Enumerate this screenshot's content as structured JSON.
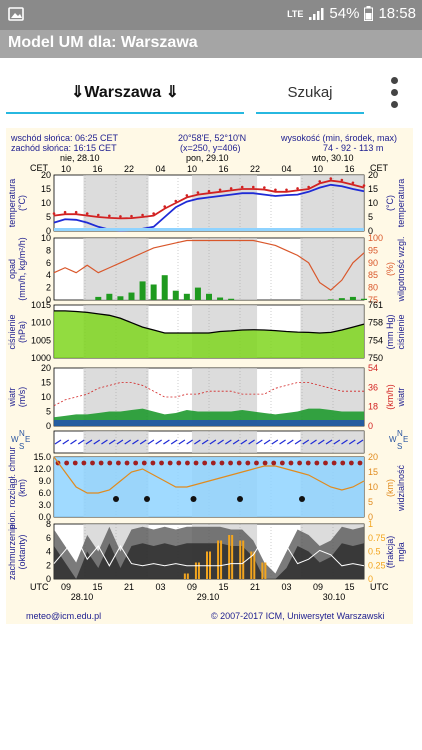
{
  "status": {
    "lte": "LTE",
    "battery": "54%",
    "time": "18:58"
  },
  "app": {
    "title": "Model UM dla: Warszawa"
  },
  "toolbar": {
    "location": "⇓Warszawa ⇓",
    "search": "Szukaj"
  },
  "meteogram": {
    "sunrise": "wschód słońca: 06:25 CET",
    "sunset": "zachód słońca: 16:15 CET",
    "coords": "20°58'E, 52°10'N",
    "grid": "(x=250, y=406)",
    "height_label": "wysokość (min, środek, max)",
    "height_values": "74 - 92 - 113 m",
    "day_labels": [
      "nie, 28.10",
      "pon, 29.10",
      "wto, 30.10"
    ],
    "cet_label": "CET",
    "utc_label": "UTC",
    "top_hours": [
      "10",
      "16",
      "22",
      "04",
      "10",
      "16",
      "22",
      "04",
      "10",
      "16"
    ],
    "bottom_hours": [
      "09",
      "15",
      "21",
      "03",
      "09",
      "15",
      "21",
      "03",
      "09",
      "15"
    ],
    "bottom_dates": [
      "28.10",
      "29.10",
      "30.10"
    ],
    "left_labels": {
      "temperatura": "temperatura",
      "temp_unit": "(°C)",
      "opad": "opad",
      "opad_unit": "(mm/h, kg/m²/h)",
      "cisnienie": "ciśnienie",
      "cisnienie_unit": "(hPa)",
      "wiatr": "wiatr",
      "wiatr_unit": "(m/s)",
      "pion": "pion. rozciągł. chmur",
      "pion_unit": "(km)",
      "zachm": "zachmurzenie",
      "zachm_unit": "(oktanty)"
    },
    "right_labels": {
      "temp_unit": "(°C)",
      "temperatura": "temperatura",
      "wilg_unit": "(%)",
      "wilg": "wilgotność wzgl.",
      "cisn_unit": "(mm Hg)",
      "cisnienie": "ciśnienie",
      "wiatr_unit": "(km/h)",
      "wiatr": "wiatr",
      "widz_unit": "(km)",
      "widz": "widzialność",
      "frakcja": "(frakcja)",
      "mgla": "mgła"
    },
    "temp_ticks": [
      "20",
      "15",
      "10",
      "5",
      "0"
    ],
    "rain_ticks": [
      "10",
      "8",
      "6",
      "4",
      "2",
      "0"
    ],
    "hum_ticks": [
      "100",
      "95",
      "90",
      "85",
      "80",
      "75"
    ],
    "press_ticks": [
      "1015",
      "1010",
      "1005",
      "1000"
    ],
    "mmhg_ticks": [
      "761",
      "758",
      "754",
      "750"
    ],
    "wind_ticks": [
      "20",
      "15",
      "10",
      "5",
      "0"
    ],
    "kmh_ticks": [
      "54",
      "36",
      "18",
      "0"
    ],
    "cloud_ticks": [
      "15.0",
      "12.0",
      "9.0",
      "6.0",
      "3.0",
      "0.0"
    ],
    "vis_ticks": [
      "20",
      "15",
      "10",
      "5",
      "0"
    ],
    "octa_ticks": [
      "8",
      "6",
      "4",
      "2",
      "0"
    ],
    "frac_ticks": [
      "1",
      "0.75",
      "0.5",
      "0.25",
      "0"
    ],
    "footer_email": "meteo@icm.edu.pl",
    "footer_copy": "© 2007-2017 ICM, Uniwersytet Warszawski",
    "compass": {
      "n": "N",
      "w": "W",
      "e": "E",
      "s": "S"
    }
  },
  "colors": {
    "night": "#d0d0d0",
    "temp_red": "#d22222",
    "temp_blue": "#1f2bd6",
    "hum_orange": "#d9572b",
    "rain_green": "#1f9a1f",
    "pressure_green": "#7fd61f",
    "wind_blue": "#1f3fc8",
    "wind_green": "#1f9a2f",
    "vis_orange": "#e08b1e",
    "fog_orange": "#f2a51f",
    "sky_blue": "#8fd3ff"
  }
}
